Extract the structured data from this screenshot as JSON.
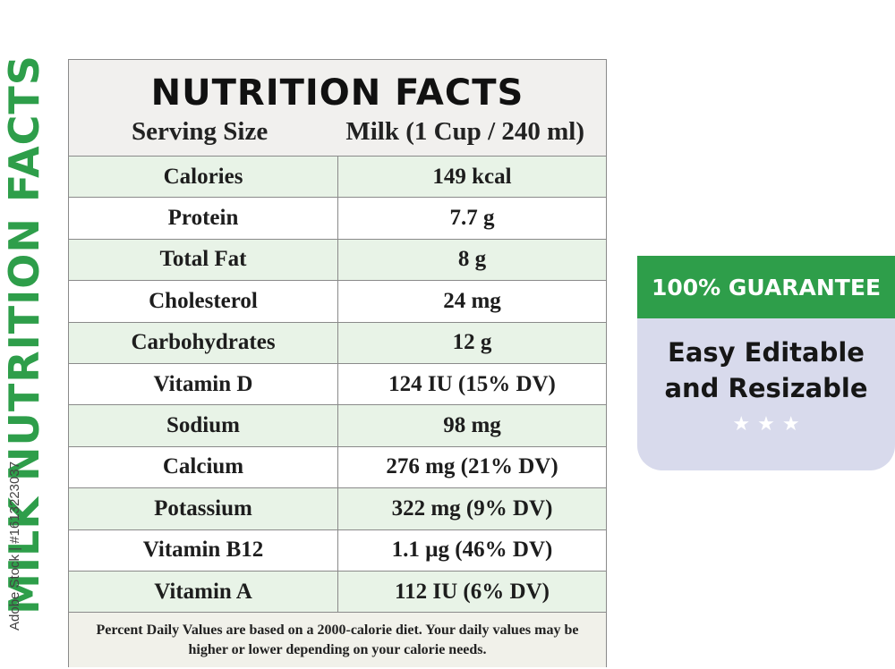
{
  "side_title": "MILK NUTRITION FACTS",
  "watermark": "Adobe Stock | #1613223037",
  "label": {
    "title": "NUTRITION FACTS",
    "serving_label": "Serving Size",
    "serving_value": "Milk (1 Cup / 240 ml)",
    "rows": [
      {
        "nutrient": "Calories",
        "amount": "149 kcal"
      },
      {
        "nutrient": "Protein",
        "amount": "7.7 g"
      },
      {
        "nutrient": "Total Fat",
        "amount": "8 g"
      },
      {
        "nutrient": "Cholesterol",
        "amount": "24 mg"
      },
      {
        "nutrient": "Carbohydrates",
        "amount": "12 g"
      },
      {
        "nutrient": "Vitamin D",
        "amount": "124 IU (15% DV)"
      },
      {
        "nutrient": "Sodium",
        "amount": "98 mg"
      },
      {
        "nutrient": "Calcium",
        "amount": "276 mg (21% DV)"
      },
      {
        "nutrient": "Potassium",
        "amount": "322 mg (9% DV)"
      },
      {
        "nutrient": "Vitamin B12",
        "amount": "1.1 µg (46% DV)"
      },
      {
        "nutrient": "Vitamin A",
        "amount": "112 IU (6% DV)"
      }
    ],
    "footnote": "Percent Daily Values are based on a 2000-calorie diet. Your daily values may be higher or lower depending on your calorie needs."
  },
  "badge": {
    "header": "100% GUARANTEE",
    "line1": "Easy Editable",
    "line2": "and Resizable",
    "star_count": 3
  },
  "colors": {
    "accent_green": "#2e9e4a",
    "row_tint": "#e8f3e7",
    "badge_body": "#d8daec"
  }
}
